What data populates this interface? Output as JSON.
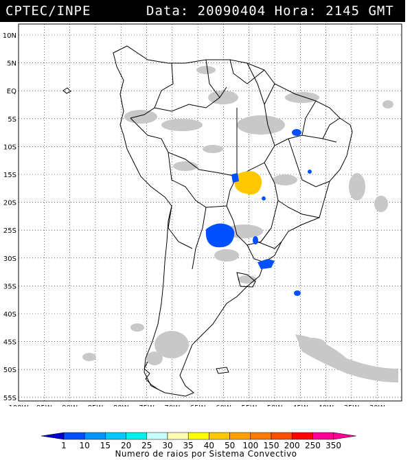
{
  "header": {
    "source": "CPTEC/INPE",
    "date_label": "Data:",
    "date_value": "20090404",
    "time_label": "Hora:",
    "time_value": "2145 GMT"
  },
  "axes": {
    "lat_labels": [
      "10N",
      "5N",
      "EQ",
      "5S",
      "10S",
      "15S",
      "20S",
      "25S",
      "30S",
      "35S",
      "40S",
      "45S",
      "50S",
      "55S"
    ],
    "lon_labels": [
      "100W",
      "95W",
      "90W",
      "85W",
      "80W",
      "75W",
      "70W",
      "65W",
      "60W",
      "55W",
      "50W",
      "45W",
      "40W",
      "35W",
      "30W"
    ],
    "grid": "dotted"
  },
  "legend": {
    "values": [
      "1",
      "10",
      "15",
      "20",
      "25",
      "30",
      "35",
      "40",
      "50",
      "100",
      "150",
      "200",
      "250",
      "350"
    ],
    "colors": [
      "#0000c8",
      "#0050ff",
      "#0096ff",
      "#00c8ff",
      "#00f0f0",
      "#c8ffff",
      "#ffffb4",
      "#ffff00",
      "#ffc800",
      "#ffa000",
      "#ff7800",
      "#ff5000",
      "#ff0000",
      "#ff0096"
    ],
    "caption": "Numero de raios por Sistema Convectivo"
  },
  "colors": {
    "cloud": "#c8c8c8",
    "coastline": "#000000",
    "storm_blue": "#0050ff",
    "storm_yellow": "#ffc800"
  }
}
